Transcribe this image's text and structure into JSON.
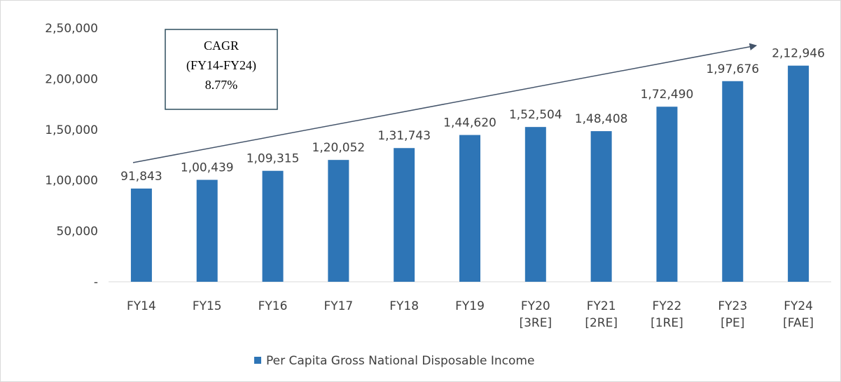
{
  "chart_data": {
    "type": "bar",
    "categories": [
      "FY14",
      "FY15",
      "FY16",
      "FY17",
      "FY18",
      "FY19",
      "FY20 [3RE]",
      "FY21 [2RE]",
      "FY22 [1RE]",
      "FY23 [PE]",
      "FY24 [FAE]"
    ],
    "series": [
      {
        "name": "Per Capita Gross National Disposable Income",
        "color": "#2e75b6",
        "values": [
          91843,
          100439,
          109315,
          120052,
          131743,
          144620,
          152504,
          148408,
          172490,
          197676,
          212946
        ],
        "value_labels": [
          "91,843",
          "1,00,439",
          "1,09,315",
          "1,20,052",
          "1,31,743",
          "1,44,620",
          "1,52,504",
          "1,48,408",
          "1,72,490",
          "1,97,676",
          "2,12,946"
        ]
      }
    ],
    "ylim": [
      0,
      250000
    ],
    "yticks": [
      {
        "value": 0,
        "label": "-"
      },
      {
        "value": 50000,
        "label": "50,000"
      },
      {
        "value": 100000,
        "label": "1,00,000"
      },
      {
        "value": 150000,
        "label": "1,50,000"
      },
      {
        "value": 200000,
        "label": "2,00,000"
      },
      {
        "value": 250000,
        "label": "2,50,000"
      }
    ],
    "annotation": [
      "CAGR",
      "(FY14-FY24)",
      "8.77%"
    ],
    "legend": "bottom"
  }
}
